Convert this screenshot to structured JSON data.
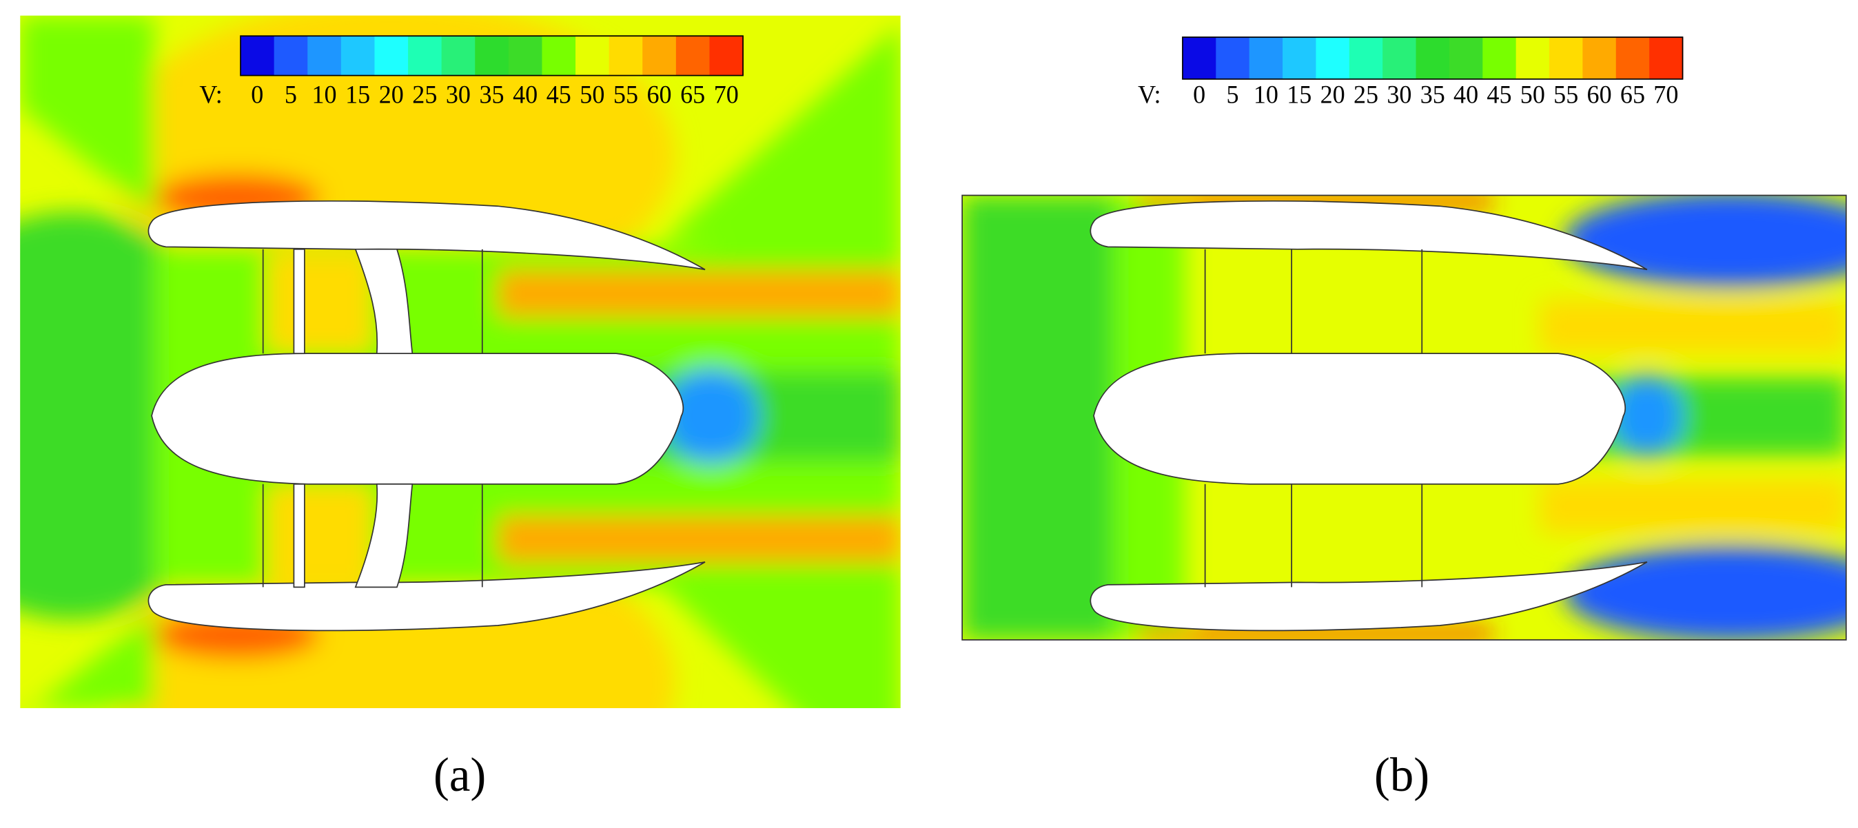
{
  "panels": [
    {
      "colorbar": {
        "label": "V:",
        "ticks": [
          0,
          5,
          10,
          15,
          20,
          25,
          30,
          35,
          40,
          45,
          50,
          55,
          60,
          65,
          70
        ],
        "colors": [
          "#0a0ae6",
          "#1e5aff",
          "#1e96ff",
          "#1ec8ff",
          "#1effff",
          "#1effb4",
          "#28f078",
          "#2ddc2d",
          "#3cdc28",
          "#78ff00",
          "#e6ff00",
          "#ffdc00",
          "#ffaa00",
          "#ff6400",
          "#ff3000"
        ]
      },
      "caption": "(a)"
    },
    {
      "colorbar": {
        "label": "V:",
        "ticks": [
          0,
          5,
          10,
          15,
          20,
          25,
          30,
          35,
          40,
          45,
          50,
          55,
          60,
          65,
          70
        ],
        "colors": [
          "#0a0ae6",
          "#1e5aff",
          "#1e96ff",
          "#1ec8ff",
          "#1effff",
          "#1effb4",
          "#28f078",
          "#2ddc2d",
          "#3cdc28",
          "#78ff00",
          "#e6ff00",
          "#ffdc00",
          "#ffaa00",
          "#ff6400",
          "#ff3000"
        ]
      },
      "caption": "(b)"
    }
  ]
}
